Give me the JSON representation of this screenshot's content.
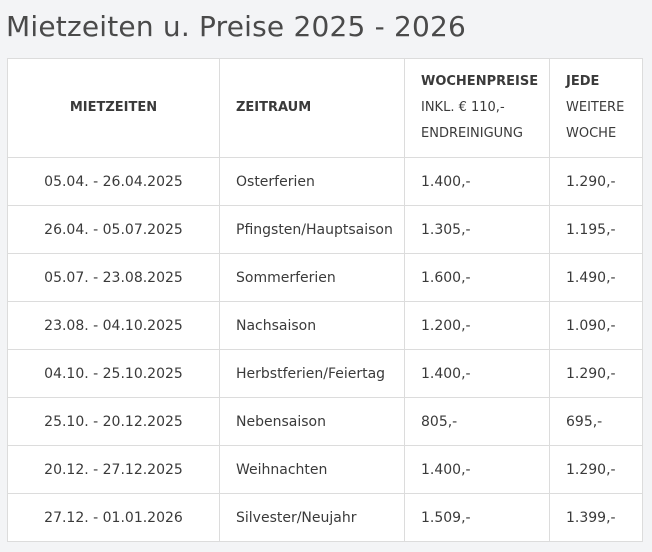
{
  "title": "Mietzeiten u. Preise 2025 - 2026",
  "table": {
    "headers": {
      "mietzeiten": "MIETZEITEN",
      "zeitraum": "ZEITRAUM",
      "wochenpreise": {
        "line1": "WOCHENPREISE",
        "line2": "INKL. € 110,-",
        "line3": "ENDREINIGUNG"
      },
      "jede_weitere_woche": {
        "line1": "JEDE",
        "line2": "WEITERE",
        "line3": "WOCHE"
      }
    },
    "rows": [
      {
        "period": "05.04. - 26.04.2025",
        "zeitraum": "Osterferien",
        "wochenpreis": "1.400,-",
        "weitere_woche": "1.290,-"
      },
      {
        "period": "26.04. - 05.07.2025",
        "zeitraum": "Pfingsten/Hauptsaison",
        "wochenpreis": "1.305,-",
        "weitere_woche": "1.195,-"
      },
      {
        "period": "05.07. - 23.08.2025",
        "zeitraum": "Sommerferien",
        "wochenpreis": "1.600,-",
        "weitere_woche": "1.490,-"
      },
      {
        "period": "23.08. - 04.10.2025",
        "zeitraum": "Nachsaison",
        "wochenpreis": "1.200,-",
        "weitere_woche": "1.090,-"
      },
      {
        "period": "04.10. - 25.10.2025",
        "zeitraum": "Herbstferien/Feiertag",
        "wochenpreis": "1.400,-",
        "weitere_woche": "1.290,-"
      },
      {
        "period": "25.10. - 20.12.2025",
        "zeitraum": "Nebensaison",
        "wochenpreis": "805,-",
        "weitere_woche": "695,-"
      },
      {
        "period": "20.12. - 27.12.2025",
        "zeitraum": "Weihnachten",
        "wochenpreis": "1.400,-",
        "weitere_woche": "1.290,-"
      },
      {
        "period": "27.12. - 01.01.2026",
        "zeitraum": "Silvester/Neujahr",
        "wochenpreis": "1.509,-",
        "weitere_woche": "1.399,-"
      }
    ]
  }
}
